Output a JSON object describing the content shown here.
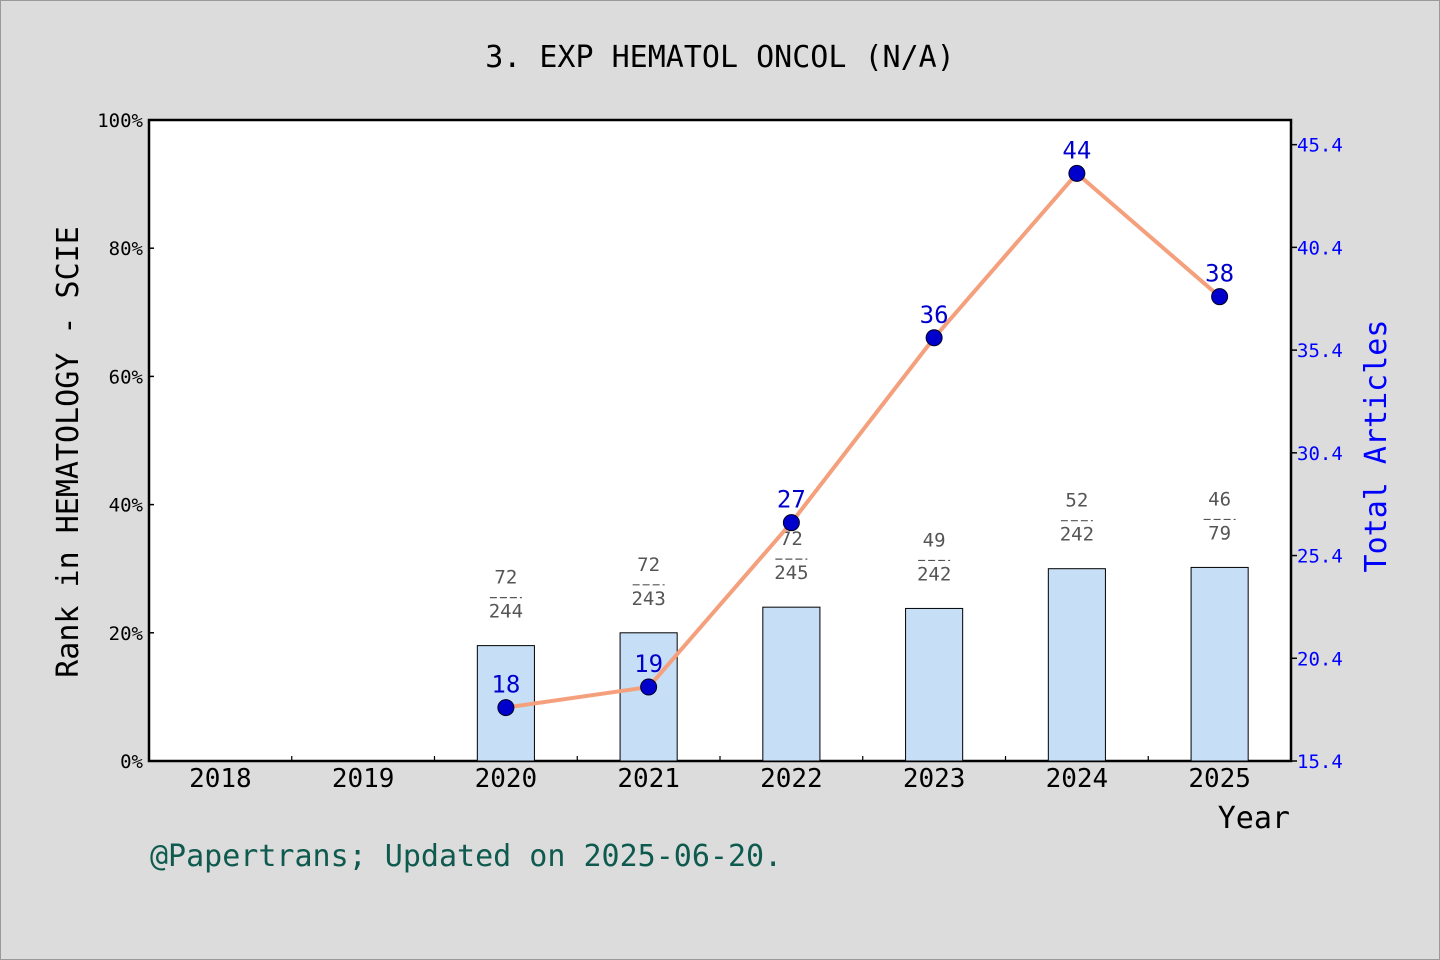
{
  "chart_data": {
    "type": "bar",
    "title": "3. EXP HEMATOL ONCOL (N/A)",
    "xlabel": "Year",
    "ylabel": "Rank in HEMATOLOGY - SCIE",
    "y2label": "Total Articles",
    "categories": [
      "2018",
      "2019",
      "2020",
      "2021",
      "2022",
      "2023",
      "2024",
      "2025"
    ],
    "ylim": [
      0,
      100
    ],
    "y_ticks": [
      "0%",
      "20%",
      "40%",
      "60%",
      "80%",
      "100%"
    ],
    "y2lim": [
      15.4,
      46.6
    ],
    "y2_ticks": [
      "15.4",
      "20.4",
      "25.4",
      "30.4",
      "35.4",
      "40.4",
      "45.4"
    ],
    "bars": [
      {
        "year": "2020",
        "value": 18.0,
        "rank": "72",
        "total": "244"
      },
      {
        "year": "2021",
        "value": 20.0,
        "rank": "72",
        "total": "243"
      },
      {
        "year": "2022",
        "value": 24.0,
        "rank": "72",
        "total": "245"
      },
      {
        "year": "2023",
        "value": 23.8,
        "rank": "49",
        "total": "242"
      },
      {
        "year": "2024",
        "value": 30.0,
        "rank": "52",
        "total": "242"
      },
      {
        "year": "2025",
        "value": 30.2,
        "rank": "46",
        "total": "79"
      }
    ],
    "line": [
      {
        "year": "2020",
        "value": 18,
        "label": "18"
      },
      {
        "year": "2021",
        "value": 19,
        "label": "19"
      },
      {
        "year": "2022",
        "value": 27,
        "label": "27"
      },
      {
        "year": "2023",
        "value": 36,
        "label": "36"
      },
      {
        "year": "2024",
        "value": 44,
        "label": "44"
      },
      {
        "year": "2025",
        "value": 38,
        "label": "38"
      }
    ],
    "grid": false,
    "colors": {
      "bar_fill": "#c6dff6",
      "line": "#f4a07c",
      "marker": "#0000cc",
      "right_axis": "#0000ff",
      "fraction_text": "#555555"
    }
  },
  "footer": "@Papertrans; Updated on 2025-06-20."
}
